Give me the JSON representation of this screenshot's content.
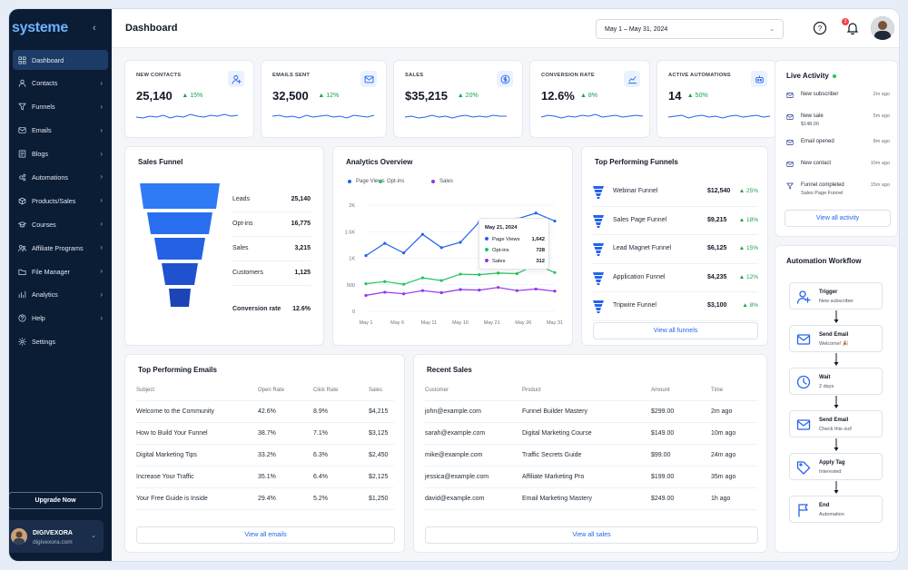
{
  "app": {
    "logo": "systeme"
  },
  "sidebar": {
    "items": [
      {
        "label": "Dashboard",
        "icon": "dashboard-icon",
        "active": true
      },
      {
        "label": "Contacts",
        "icon": "contacts-icon"
      },
      {
        "label": "Funnels",
        "icon": "funnel-icon"
      },
      {
        "label": "Emails",
        "icon": "mail-icon"
      },
      {
        "label": "Blogs",
        "icon": "blog-icon"
      },
      {
        "label": "Automations",
        "icon": "automation-icon"
      },
      {
        "label": "Products/Sales",
        "icon": "products-icon"
      },
      {
        "label": "Courses",
        "icon": "courses-icon"
      },
      {
        "label": "Affiliate Programs",
        "icon": "affiliate-icon"
      },
      {
        "label": "File Manager",
        "icon": "folder-icon"
      },
      {
        "label": "Analytics",
        "icon": "analytics-icon"
      },
      {
        "label": "Help",
        "icon": "help-icon"
      },
      {
        "label": "Settings",
        "icon": "gear-icon"
      }
    ],
    "upgrade_label": "Upgrade Now",
    "profile": {
      "name": "DIGIVEXORA",
      "email": "digivexora.com"
    }
  },
  "header": {
    "title": "Dashboard",
    "date_range": "May 1 – May 31, 2024",
    "notification_count": "3"
  },
  "stats": [
    {
      "label": "NEW CONTACTS",
      "value": "25,140",
      "change": "15%",
      "icon": "add-user-icon"
    },
    {
      "label": "EMAILS SENT",
      "value": "32,500",
      "change": "12%",
      "icon": "mail-icon"
    },
    {
      "label": "SALES",
      "value": "$35,215",
      "change": "20%",
      "icon": "dollar-icon"
    },
    {
      "label": "CONVERSION RATE",
      "value": "12.6%",
      "change": "8%",
      "icon": "chart-icon"
    },
    {
      "label": "ACTIVE AUTOMATIONS",
      "value": "14",
      "change": "50%",
      "icon": "robot-icon"
    }
  ],
  "sales_funnel": {
    "title": "Sales Funnel",
    "rows": [
      {
        "label": "Leads",
        "value": "25,140"
      },
      {
        "label": "Opt-ins",
        "value": "16,775"
      },
      {
        "label": "Sales",
        "value": "3,215"
      },
      {
        "label": "Customers",
        "value": "1,125"
      }
    ],
    "conversion_label": "Conversion rate",
    "conversion_value": "12.6%"
  },
  "analytics": {
    "title": "Analytics Overview",
    "tooltip": {
      "date": "May 21, 2024",
      "rows": [
        {
          "label": "Page Views",
          "value": "1,642"
        },
        {
          "label": "Opt-ins",
          "value": "728"
        },
        {
          "label": "Sales",
          "value": "312"
        }
      ]
    }
  },
  "chart_data": {
    "type": "line",
    "categories": [
      "May 1",
      "May 6",
      "May 11",
      "May 16",
      "May 21",
      "May 26",
      "May 31"
    ],
    "x": [
      1,
      4,
      7,
      10,
      13,
      16,
      19,
      22,
      25,
      28,
      31
    ],
    "series": [
      {
        "name": "Page Views",
        "color": "#2563eb",
        "values": [
          1050,
          1280,
          1100,
          1450,
          1200,
          1300,
          1680,
          1700,
          1740,
          1850,
          1700
        ]
      },
      {
        "name": "Opt-ins",
        "color": "#22c55e",
        "values": [
          520,
          560,
          510,
          630,
          580,
          700,
          690,
          720,
          710,
          880,
          730
        ]
      },
      {
        "name": "Sales",
        "color": "#9333ea",
        "values": [
          300,
          360,
          330,
          390,
          350,
          410,
          400,
          450,
          390,
          420,
          380
        ]
      }
    ],
    "yticks": [
      "0",
      "500",
      "1K",
      "1.5K",
      "2K"
    ],
    "ylim": [
      0,
      2000
    ],
    "grid": true,
    "legend": "top-left"
  },
  "top_funnels": {
    "title": "Top Performing Funnels",
    "rows": [
      {
        "name": "Webinar Funnel",
        "value": "$12,540",
        "change": "25%"
      },
      {
        "name": "Sales Page Funnel",
        "value": "$9,215",
        "change": "18%"
      },
      {
        "name": "Lead Magnet Funnel",
        "value": "$6,125",
        "change": "15%"
      },
      {
        "name": "Application Funnel",
        "value": "$4,235",
        "change": "12%"
      },
      {
        "name": "Tripwire Funnel",
        "value": "$3,100",
        "change": "8%"
      }
    ],
    "link": "View all funnels"
  },
  "live_activity": {
    "title": "Live Activity",
    "rows": [
      {
        "title": "New subscriber",
        "sub": "",
        "time": "2m ago",
        "icon": "subscriber-icon"
      },
      {
        "title": "New sale",
        "sub": "$148.00",
        "time": "5m ago",
        "icon": "sale-icon"
      },
      {
        "title": "Email opened",
        "sub": "",
        "time": "8m ago",
        "icon": "mail-icon"
      },
      {
        "title": "New contact",
        "sub": "",
        "time": "10m ago",
        "icon": "contact-icon"
      },
      {
        "title": "Funnel completed",
        "sub": "Sales Page Funnel",
        "time": "15m ago",
        "icon": "funnel-icon"
      }
    ],
    "link": "View all activity"
  },
  "workflow": {
    "title": "Automation Workflow",
    "steps": [
      {
        "title": "Trigger",
        "sub": "New subscriber",
        "icon": "trigger-icon"
      },
      {
        "title": "Send Email",
        "sub": "Welcome! 🎉",
        "icon": "mail-icon"
      },
      {
        "title": "Wait",
        "sub": "2 days",
        "icon": "clock-icon"
      },
      {
        "title": "Send Email",
        "sub": "Check this out!",
        "icon": "mail-icon"
      },
      {
        "title": "Apply Tag",
        "sub": "Interested",
        "icon": "tag-icon"
      },
      {
        "title": "End",
        "sub": "Automation",
        "icon": "flag-icon"
      }
    ]
  },
  "top_emails": {
    "title": "Top Performing Emails",
    "headers": [
      "Subject",
      "Open Rate",
      "Click Rate",
      "Sales"
    ],
    "rows": [
      [
        "Welcome to the Community",
        "42.6%",
        "8.9%",
        "$4,215"
      ],
      [
        "How to Build Your Funnel",
        "38.7%",
        "7.1%",
        "$3,125"
      ],
      [
        "Digital Marketing Tips",
        "33.2%",
        "6.3%",
        "$2,450"
      ],
      [
        "Increase Your Traffic",
        "35.1%",
        "6.4%",
        "$2,125"
      ],
      [
        "Your Free Guide is Inside",
        "29.4%",
        "5.2%",
        "$1,250"
      ]
    ],
    "link": "View all emails"
  },
  "recent_sales": {
    "title": "Recent Sales",
    "headers": [
      "Customer",
      "Product",
      "Amount",
      "Time"
    ],
    "rows": [
      [
        "john@example.com",
        "Funnel Builder Mastery",
        "$299.00",
        "2m ago"
      ],
      [
        "sarah@example.com",
        "Digital Marketing Course",
        "$149.00",
        "10m ago"
      ],
      [
        "mike@example.com",
        "Traffic Secrets Guide",
        "$99.00",
        "24m ago"
      ],
      [
        "jessica@example.com",
        "Affiliate Marketing Pro",
        "$199.00",
        "35m ago"
      ],
      [
        "david@example.com",
        "Email Marketing Mastery",
        "$249.00",
        "1h ago"
      ]
    ],
    "link": "View all sales"
  }
}
